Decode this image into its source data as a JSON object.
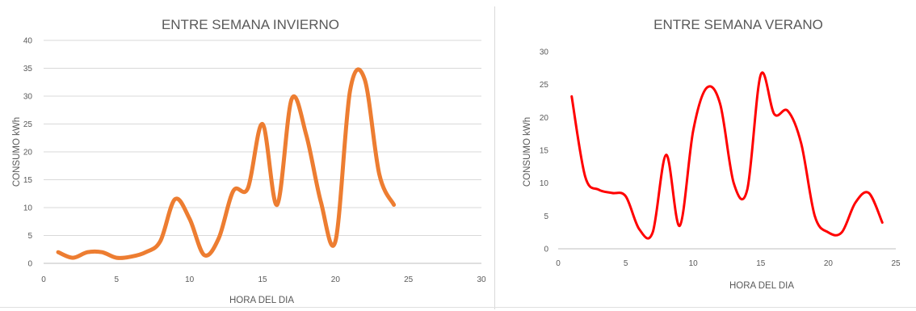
{
  "chart_data": [
    {
      "type": "line",
      "title": "ENTRE SEMANA INVIERNO",
      "xlabel": "HORA DEL DIA",
      "ylabel": "CONSUMO kWh",
      "xlim": [
        0,
        30
      ],
      "ylim": [
        0,
        40
      ],
      "x_ticks": [
        0,
        5,
        10,
        15,
        20,
        25,
        30
      ],
      "y_ticks": [
        0,
        5,
        10,
        15,
        20,
        25,
        30,
        35,
        40
      ],
      "grid": true,
      "smooth": true,
      "series": [
        {
          "color": "#ed7d31",
          "x": [
            1,
            2,
            3,
            4,
            5,
            6,
            7,
            8,
            9,
            10,
            11,
            12,
            13,
            14,
            15,
            16,
            17,
            18,
            19,
            20,
            21,
            22,
            23,
            24
          ],
          "y": [
            2,
            1,
            2,
            2,
            1,
            1.2,
            2,
            4,
            11.5,
            8,
            1.5,
            4.5,
            13,
            13.5,
            25,
            10.5,
            29.5,
            23,
            11,
            4,
            31,
            33,
            16,
            10.5
          ]
        }
      ]
    },
    {
      "type": "line",
      "title": "ENTRE SEMANA VERANO",
      "xlabel": "HORA DEL DIA",
      "ylabel": "CONSUMO kWh",
      "xlim": [
        0,
        25
      ],
      "ylim": [
        0,
        30
      ],
      "x_ticks": [
        0,
        5,
        10,
        15,
        20,
        25
      ],
      "y_ticks": [
        0,
        5,
        10,
        15,
        20,
        25,
        30
      ],
      "grid": false,
      "smooth": true,
      "series": [
        {
          "color": "#ff0000",
          "x": [
            1,
            2,
            3,
            4,
            5,
            6,
            7,
            8,
            9,
            10,
            11,
            12,
            13,
            14,
            15,
            16,
            17,
            18,
            19,
            20,
            21,
            22,
            23,
            24
          ],
          "y": [
            23.2,
            11,
            9,
            8.5,
            8,
            3,
            2.5,
            14.3,
            3.5,
            18,
            24.5,
            22,
            10,
            9,
            26.5,
            20.5,
            21,
            16,
            5,
            2.5,
            2.5,
            7,
            8.5,
            4
          ]
        }
      ]
    }
  ]
}
